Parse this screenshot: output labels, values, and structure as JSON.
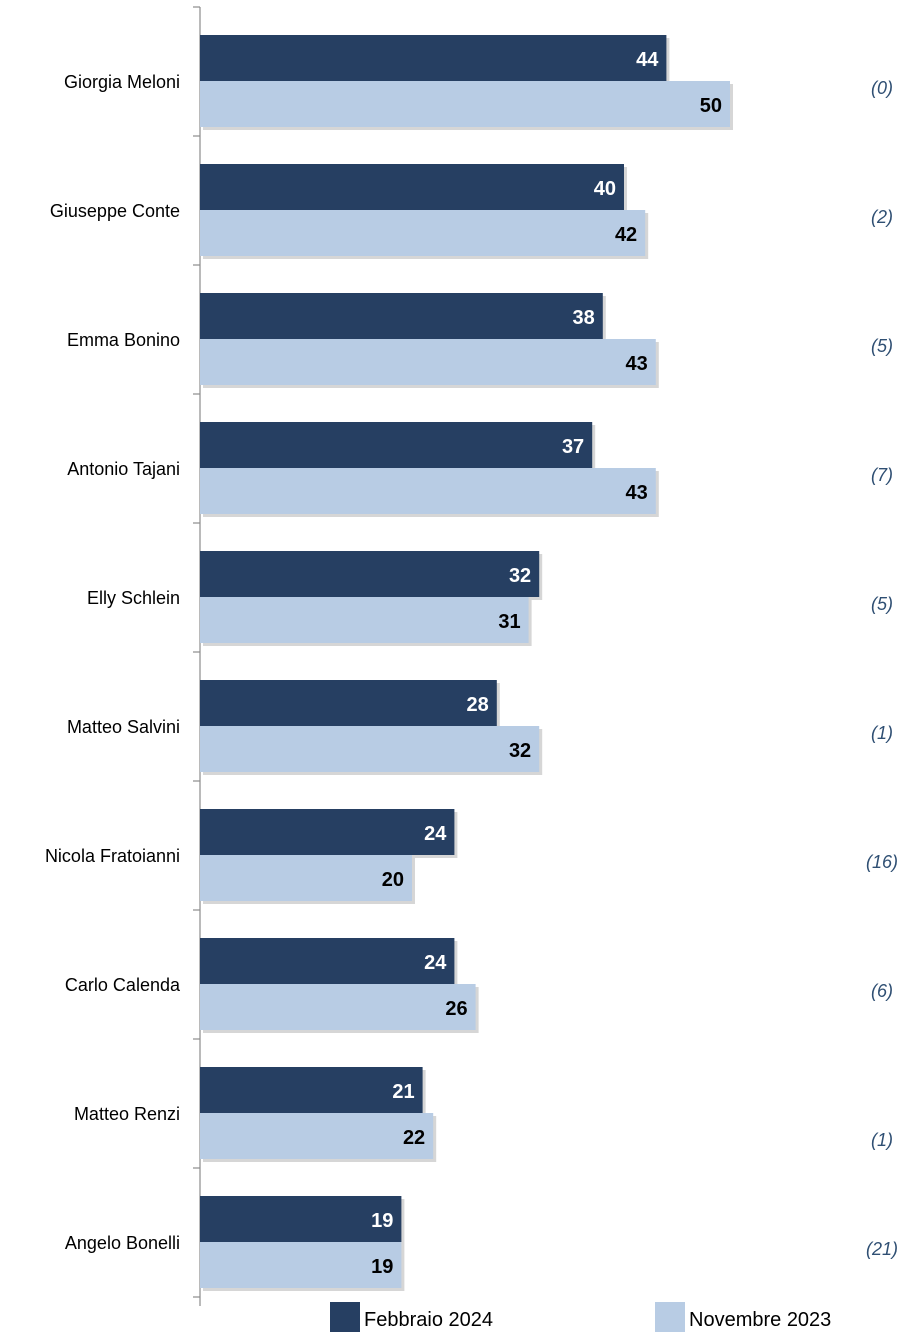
{
  "chart_data": {
    "type": "bar",
    "orientation": "horizontal",
    "categories": [
      "Giorgia Meloni",
      "Giuseppe Conte",
      "Emma Bonino",
      "Antonio Tajani",
      "Elly Schlein",
      "Matteo Salvini",
      "Nicola Fratoianni",
      "Carlo Calenda",
      "Matteo Renzi",
      "Angelo Bonelli"
    ],
    "series": [
      {
        "name": "Febbraio 2024",
        "color": "#263f62",
        "values": [
          44,
          40,
          38,
          37,
          32,
          28,
          24,
          24,
          21,
          19
        ]
      },
      {
        "name": "Novembre 2023",
        "color": "#b8cce4",
        "values": [
          50,
          42,
          43,
          43,
          31,
          32,
          20,
          26,
          22,
          19
        ]
      }
    ],
    "annotations": [
      "(0)",
      "(2)",
      "(5)",
      "(7)",
      "(5)",
      "(1)",
      "(16)",
      "(6)",
      "(1)",
      "(21)"
    ],
    "xlim": [
      0,
      66
    ],
    "grid": false,
    "legend_position": "bottom"
  }
}
